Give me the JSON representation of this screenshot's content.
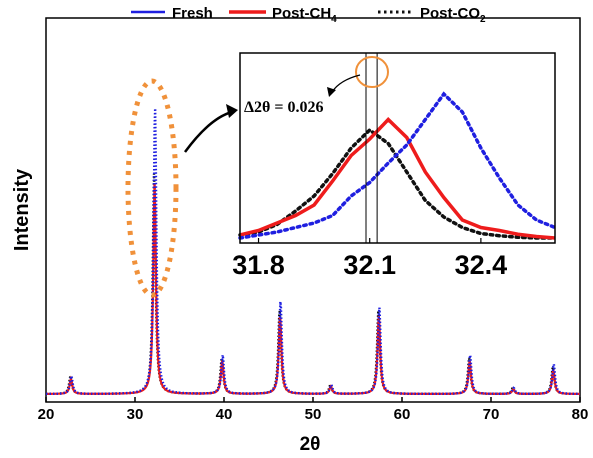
{
  "chart_data": [
    {
      "type": "line",
      "title": "",
      "xlabel": "2θ",
      "ylabel": "Intensity",
      "xlim": [
        20,
        80
      ],
      "ylim": [
        0,
        1
      ],
      "xticks": [
        20,
        30,
        40,
        50,
        60,
        70,
        80
      ],
      "yticks": [],
      "grid": false,
      "legend_position": "top",
      "peaks": [
        {
          "two_theta": 22.8,
          "fresh": 0.06,
          "post_ch4": 0.05,
          "post_co2": 0.06
        },
        {
          "two_theta": 32.2,
          "fresh": 0.96,
          "post_ch4": 0.7,
          "post_co2": 0.74
        },
        {
          "two_theta": 39.8,
          "fresh": 0.13,
          "post_ch4": 0.11,
          "post_co2": 0.12
        },
        {
          "two_theta": 46.3,
          "fresh": 0.31,
          "post_ch4": 0.26,
          "post_co2": 0.28
        },
        {
          "two_theta": 52.0,
          "fresh": 0.03,
          "post_ch4": 0.025,
          "post_co2": 0.03
        },
        {
          "two_theta": 57.4,
          "fresh": 0.29,
          "post_ch4": 0.26,
          "post_co2": 0.28
        },
        {
          "two_theta": 67.6,
          "fresh": 0.13,
          "post_ch4": 0.11,
          "post_co2": 0.12
        },
        {
          "two_theta": 72.5,
          "fresh": 0.02,
          "post_ch4": 0.015,
          "post_co2": 0.02
        },
        {
          "two_theta": 77.0,
          "fresh": 0.1,
          "post_ch4": 0.08,
          "post_co2": 0.09
        }
      ],
      "series": [
        {
          "name": "Fresh",
          "color": "#1f1fe0",
          "style": "dotted"
        },
        {
          "name": "Post-CH4",
          "color": "#ee1c1c",
          "style": "solid"
        },
        {
          "name": "Post-CO2",
          "color": "#111111",
          "style": "dotted"
        }
      ]
    },
    {
      "type": "line",
      "title": "",
      "xlabel": "",
      "ylabel": "",
      "xlim": [
        31.75,
        32.6
      ],
      "ylim": [
        0,
        1
      ],
      "xticks": [
        31.8,
        32.1,
        32.4
      ],
      "xtick_labels": [
        "31.8",
        "32.1",
        "32.4"
      ],
      "grid": false,
      "x": [
        31.75,
        31.8,
        31.85,
        31.9,
        31.95,
        32.0,
        32.05,
        32.1,
        32.15,
        32.2,
        32.25,
        32.3,
        32.35,
        32.4,
        32.45,
        32.5,
        32.55,
        32.6
      ],
      "series": [
        {
          "name": "Fresh",
          "color": "#1f1fe0",
          "style": "dotted",
          "values": [
            0.0,
            0.02,
            0.04,
            0.07,
            0.1,
            0.15,
            0.28,
            0.37,
            0.5,
            0.62,
            0.79,
            0.96,
            0.84,
            0.6,
            0.4,
            0.22,
            0.12,
            0.07
          ]
        },
        {
          "name": "Post-CH4",
          "color": "#ee1c1c",
          "style": "solid",
          "values": [
            0.02,
            0.05,
            0.1,
            0.15,
            0.22,
            0.38,
            0.55,
            0.66,
            0.79,
            0.67,
            0.44,
            0.27,
            0.12,
            0.07,
            0.05,
            0.025,
            0.01,
            0.0
          ]
        },
        {
          "name": "Post-CO2",
          "color": "#111111",
          "style": "dotted",
          "values": [
            0.02,
            0.04,
            0.09,
            0.18,
            0.28,
            0.43,
            0.6,
            0.72,
            0.63,
            0.44,
            0.25,
            0.14,
            0.07,
            0.03,
            0.015,
            0.005,
            0.0,
            0.0
          ]
        }
      ],
      "vlines": [
        32.09,
        32.12
      ],
      "annotation": "Δ2θ = 0.026"
    }
  ],
  "labels": {
    "ylabel": "Intensity",
    "xlabel": "2θ",
    "legend_fresh": "Fresh",
    "legend_ch4_main": "Post-CH",
    "legend_ch4_sub": "4",
    "legend_co2_main": "Post-CO",
    "legend_co2_sub": "2",
    "inset_delta": "Δ2θ = 0.026"
  },
  "colors": {
    "fresh": "#1f1fe0",
    "post_ch4": "#ee1c1c",
    "post_co2": "#111111",
    "highlight": "#f0913a"
  }
}
